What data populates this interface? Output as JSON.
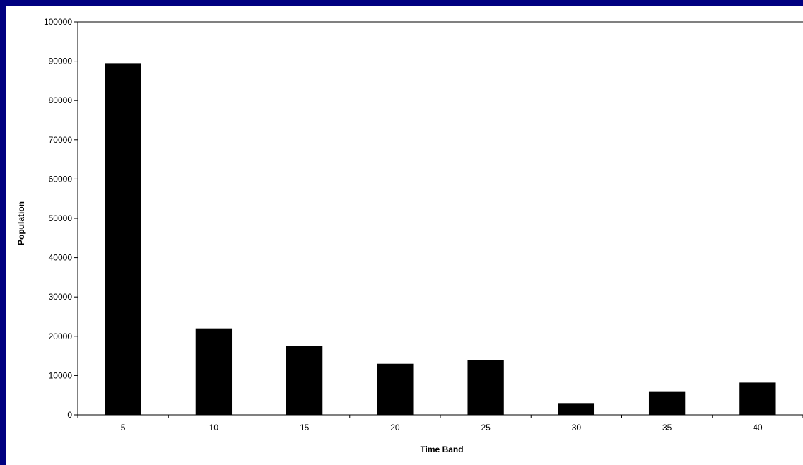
{
  "chart_data": {
    "type": "bar",
    "categories": [
      "5",
      "10",
      "15",
      "20",
      "25",
      "30",
      "35",
      "40"
    ],
    "values": [
      89500,
      22000,
      17500,
      13000,
      14000,
      3000,
      6000,
      8200
    ],
    "xlabel": "Time Band",
    "ylabel": "Population",
    "ylim": [
      0,
      100000
    ],
    "yticks": [
      "0",
      "10000",
      "20000",
      "30000",
      "40000",
      "50000",
      "60000",
      "70000",
      "80000",
      "90000",
      "100000"
    ],
    "grid": false,
    "legend": "none",
    "colors": {
      "bar": "#000000",
      "background": "#ffffff",
      "border": "#000080"
    }
  }
}
